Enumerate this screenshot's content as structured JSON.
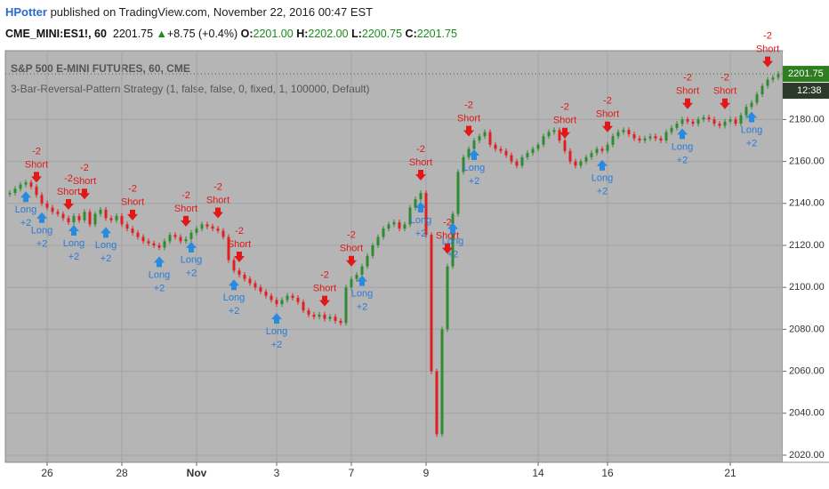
{
  "header": {
    "author": "HPotter",
    "published": "published on TradingView.com, November 22, 2016 00:47 EST",
    "symbol": "CME_MINI:ES1!, 60",
    "last": "2201.75",
    "change": "+8.75 (+0.4%)",
    "open_label": "O:",
    "open": "2201.00",
    "high_label": "H:",
    "high": "2202.00",
    "low_label": "L:",
    "low": "2200.75",
    "close_label": "C:",
    "close": "2201.75"
  },
  "chart_data": {
    "type": "candlestick",
    "title": "S&P 500 E-MINI FUTURES, 60, CME",
    "subtitle": "3-Bar-Reversal-Pattern Strategy (1, false, false, 0, fixed, 1, 100000, Default)",
    "categories": [
      null,
      null,
      null,
      null,
      null,
      null,
      null,
      "26",
      null,
      null,
      null,
      null,
      null,
      null,
      null,
      null,
      null,
      null,
      null,
      null,
      null,
      "28",
      null,
      null,
      null,
      null,
      null,
      null,
      null,
      null,
      null,
      null,
      null,
      null,
      null,
      "Nov",
      null,
      null,
      null,
      null,
      null,
      null,
      null,
      null,
      null,
      null,
      null,
      null,
      null,
      null,
      "3",
      null,
      null,
      null,
      null,
      null,
      null,
      null,
      null,
      null,
      null,
      null,
      null,
      null,
      "7",
      null,
      null,
      null,
      null,
      null,
      null,
      null,
      null,
      null,
      null,
      null,
      null,
      null,
      "9",
      null,
      null,
      null,
      null,
      null,
      null,
      null,
      null,
      null,
      null,
      null,
      null,
      null,
      null,
      null,
      null,
      null,
      null,
      null,
      null,
      "14",
      null,
      null,
      null,
      null,
      null,
      null,
      null,
      null,
      null,
      null,
      null,
      null,
      "16",
      null,
      null,
      null,
      null,
      null,
      null,
      null,
      null,
      null,
      null,
      null,
      null,
      null,
      null,
      null,
      null,
      null,
      null,
      null,
      null,
      null,
      null,
      "21",
      null,
      null,
      null,
      null,
      null,
      null,
      null,
      null,
      null
    ],
    "close": [
      2145,
      2147,
      2149,
      2150,
      2148,
      2144,
      2140,
      2138,
      2136,
      2135,
      2133,
      2131,
      2134,
      2132,
      2136,
      2130,
      2135,
      2137,
      2133,
      2132,
      2134,
      2130,
      2128,
      2126,
      2124,
      2122,
      2121,
      2120,
      2119,
      2122,
      2125,
      2124,
      2122,
      2123,
      2126,
      2128,
      2130,
      2129,
      2128,
      2127,
      2124,
      2113,
      2108,
      2106,
      2104,
      2102,
      2100,
      2098,
      2096,
      2094,
      2092,
      2094,
      2096,
      2095,
      2093,
      2089,
      2087,
      2086,
      2087,
      2085,
      2086,
      2084,
      2083,
      2100,
      2104,
      2106,
      2110,
      2115,
      2120,
      2124,
      2128,
      2130,
      2131,
      2128,
      2130,
      2138,
      2142,
      2145,
      2125,
      2060,
      2030,
      2080,
      2110,
      2135,
      2155,
      2162,
      2166,
      2170,
      2172,
      2174,
      2168,
      2166,
      2165,
      2163,
      2160,
      2158,
      2162,
      2164,
      2166,
      2168,
      2172,
      2174,
      2175,
      2170,
      2165,
      2160,
      2158,
      2160,
      2162,
      2164,
      2166,
      2165,
      2168,
      2172,
      2174,
      2175,
      2173,
      2171,
      2170,
      2171,
      2172,
      2171,
      2170,
      2174,
      2176,
      2178,
      2180,
      2179,
      2178,
      2180,
      2181,
      2180,
      2178,
      2177,
      2179,
      2180,
      2178,
      2182,
      2186,
      2188,
      2192,
      2196,
      2199,
      2200,
      2201.75
    ],
    "up_color": "#2e8b2e",
    "down_color": "#e02020",
    "ylim": [
      2016.6,
      2212.8
    ],
    "yticks": [
      {
        "value": 2020,
        "label": "2020.00"
      },
      {
        "value": 2040,
        "label": "2040.00"
      },
      {
        "value": 2060,
        "label": "2060.00"
      },
      {
        "value": 2080,
        "label": "2080.00"
      },
      {
        "value": 2100,
        "label": "2100.00"
      },
      {
        "value": 2120,
        "label": "2120.00"
      },
      {
        "value": 2140,
        "label": "2140.00"
      },
      {
        "value": 2160,
        "label": "2160.00"
      },
      {
        "value": 2180,
        "label": "2180.00"
      }
    ],
    "grid": true,
    "last_price": {
      "value": 2201.75,
      "label": "2201.75",
      "color": "#2e7d1e"
    },
    "countdown": "12:38",
    "signals": [
      {
        "side": "Long",
        "qty": "+2",
        "bar": 3
      },
      {
        "side": "Short",
        "qty": "-2",
        "bar": 5
      },
      {
        "side": "Long",
        "qty": "+2",
        "bar": 6
      },
      {
        "side": "Short",
        "qty": "-2",
        "bar": 11
      },
      {
        "side": "Long",
        "qty": "+2",
        "bar": 12
      },
      {
        "side": "Short",
        "qty": "-2",
        "bar": 14
      },
      {
        "side": "Long",
        "qty": "+2",
        "bar": 18
      },
      {
        "side": "Short",
        "qty": "-2",
        "bar": 23
      },
      {
        "side": "Long",
        "qty": "+2",
        "bar": 28
      },
      {
        "side": "Short",
        "qty": "-2",
        "bar": 33
      },
      {
        "side": "Long",
        "qty": "+2",
        "bar": 34
      },
      {
        "side": "Short",
        "qty": "-2",
        "bar": 39
      },
      {
        "side": "Long",
        "qty": "+2",
        "bar": 42
      },
      {
        "side": "Short",
        "qty": "-2",
        "bar": 43
      },
      {
        "side": "Long",
        "qty": "+2",
        "bar": 50
      },
      {
        "side": "Short",
        "qty": "-2",
        "bar": 59
      },
      {
        "side": "Short",
        "qty": "-2",
        "bar": 64
      },
      {
        "side": "Long",
        "qty": "+2",
        "bar": 66
      },
      {
        "side": "Short",
        "qty": "-2",
        "bar": 77
      },
      {
        "side": "Long",
        "qty": "+2",
        "bar": 77
      },
      {
        "side": "Short",
        "qty": "-2",
        "bar": 82
      },
      {
        "side": "Long",
        "qty": "+2",
        "bar": 83
      },
      {
        "side": "Short",
        "qty": "-2",
        "bar": 86
      },
      {
        "side": "Long",
        "qty": "+2",
        "bar": 87
      },
      {
        "side": "Short",
        "qty": "-2",
        "bar": 104
      },
      {
        "side": "Long",
        "qty": "+2",
        "bar": 111
      },
      {
        "side": "Short",
        "qty": "-2",
        "bar": 112
      },
      {
        "side": "Long",
        "qty": "+2",
        "bar": 126
      },
      {
        "side": "Short",
        "qty": "-2",
        "bar": 127
      },
      {
        "side": "Short",
        "qty": "-2",
        "bar": 134
      },
      {
        "side": "Long",
        "qty": "+2",
        "bar": 139
      },
      {
        "side": "Short",
        "qty": "-2",
        "bar": 142
      }
    ]
  }
}
